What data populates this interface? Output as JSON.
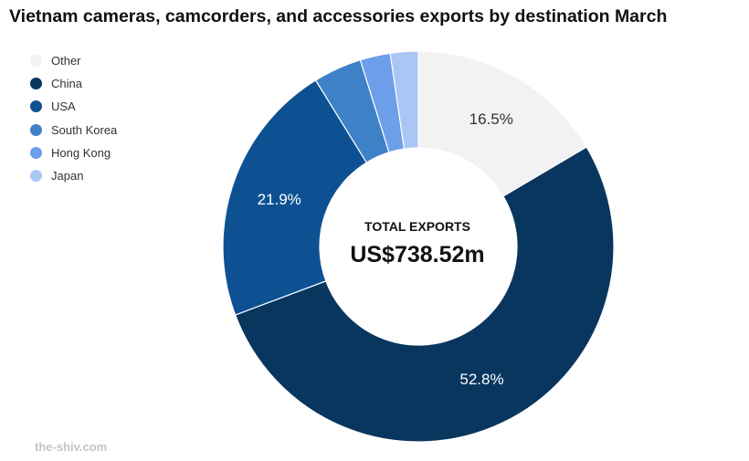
{
  "chart_data": {
    "type": "pie",
    "title": "Vietnam cameras, camcorders, and accessories exports by destination March",
    "center_label": "TOTAL EXPORTS",
    "center_value": "US$738.52m",
    "legend_position": "top-left",
    "categories": [
      "Other",
      "China",
      "USA",
      "South Korea",
      "Hong Kong",
      "Japan"
    ],
    "values": [
      16.5,
      52.8,
      21.9,
      4.0,
      2.5,
      2.3
    ],
    "labels": [
      "16.5%",
      "52.8%",
      "21.9%",
      "",
      "",
      ""
    ],
    "colors": [
      "#f2f2f2",
      "#08365f",
      "#0e5193",
      "#3f81c6",
      "#6d9eea",
      "#a9c6f5"
    ],
    "label_colors": [
      "#333333",
      "#ffffff",
      "#ffffff",
      "#ffffff",
      "#ffffff",
      "#ffffff"
    ]
  },
  "watermark": "the-shiv.com"
}
